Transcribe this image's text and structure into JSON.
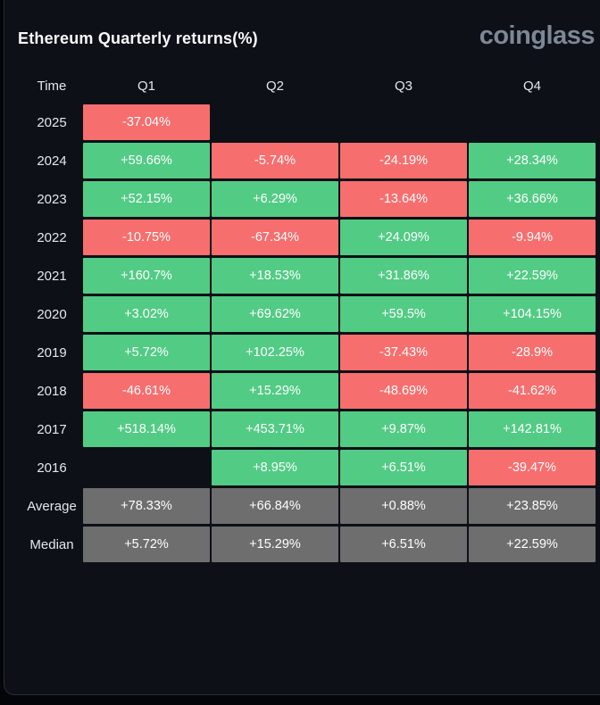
{
  "header": {
    "title": "Ethereum Quarterly returns(%)",
    "logo": "coinglass"
  },
  "colors": {
    "green": "#52cb85",
    "red": "#f76e6e",
    "gray": "#6e6e6e",
    "card_bg": "#0d1017",
    "page_bg": "#030508",
    "card_border": "#272c37",
    "text": "#ffffff",
    "label_text": "#e3e7ee",
    "logo_text": "#7e8796"
  },
  "table": {
    "columns": [
      "Time",
      "Q1",
      "Q2",
      "Q3",
      "Q4"
    ],
    "rows": [
      {
        "label": "2025",
        "cells": [
          {
            "text": "-37.04%",
            "color": "red"
          },
          null,
          null,
          null
        ]
      },
      {
        "label": "2024",
        "cells": [
          {
            "text": "+59.66%",
            "color": "green"
          },
          {
            "text": "-5.74%",
            "color": "red"
          },
          {
            "text": "-24.19%",
            "color": "red"
          },
          {
            "text": "+28.34%",
            "color": "green"
          }
        ]
      },
      {
        "label": "2023",
        "cells": [
          {
            "text": "+52.15%",
            "color": "green"
          },
          {
            "text": "+6.29%",
            "color": "green"
          },
          {
            "text": "-13.64%",
            "color": "red"
          },
          {
            "text": "+36.66%",
            "color": "green"
          }
        ]
      },
      {
        "label": "2022",
        "cells": [
          {
            "text": "-10.75%",
            "color": "red"
          },
          {
            "text": "-67.34%",
            "color": "red"
          },
          {
            "text": "+24.09%",
            "color": "green"
          },
          {
            "text": "-9.94%",
            "color": "red"
          }
        ]
      },
      {
        "label": "2021",
        "cells": [
          {
            "text": "+160.7%",
            "color": "green"
          },
          {
            "text": "+18.53%",
            "color": "green"
          },
          {
            "text": "+31.86%",
            "color": "green"
          },
          {
            "text": "+22.59%",
            "color": "green"
          }
        ]
      },
      {
        "label": "2020",
        "cells": [
          {
            "text": "+3.02%",
            "color": "green"
          },
          {
            "text": "+69.62%",
            "color": "green"
          },
          {
            "text": "+59.5%",
            "color": "green"
          },
          {
            "text": "+104.15%",
            "color": "green"
          }
        ]
      },
      {
        "label": "2019",
        "cells": [
          {
            "text": "+5.72%",
            "color": "green"
          },
          {
            "text": "+102.25%",
            "color": "green"
          },
          {
            "text": "-37.43%",
            "color": "red"
          },
          {
            "text": "-28.9%",
            "color": "red"
          }
        ]
      },
      {
        "label": "2018",
        "cells": [
          {
            "text": "-46.61%",
            "color": "red"
          },
          {
            "text": "+15.29%",
            "color": "green"
          },
          {
            "text": "-48.69%",
            "color": "red"
          },
          {
            "text": "-41.62%",
            "color": "red"
          }
        ]
      },
      {
        "label": "2017",
        "cells": [
          {
            "text": "+518.14%",
            "color": "green"
          },
          {
            "text": "+453.71%",
            "color": "green"
          },
          {
            "text": "+9.87%",
            "color": "green"
          },
          {
            "text": "+142.81%",
            "color": "green"
          }
        ]
      },
      {
        "label": "2016",
        "cells": [
          null,
          {
            "text": "+8.95%",
            "color": "green"
          },
          {
            "text": "+6.51%",
            "color": "green"
          },
          {
            "text": "-39.47%",
            "color": "red"
          }
        ]
      },
      {
        "label": "Average",
        "cells": [
          {
            "text": "+78.33%",
            "color": "gray"
          },
          {
            "text": "+66.84%",
            "color": "gray"
          },
          {
            "text": "+0.88%",
            "color": "gray"
          },
          {
            "text": "+23.85%",
            "color": "gray"
          }
        ]
      },
      {
        "label": "Median",
        "cells": [
          {
            "text": "+5.72%",
            "color": "gray"
          },
          {
            "text": "+15.29%",
            "color": "gray"
          },
          {
            "text": "+6.51%",
            "color": "gray"
          },
          {
            "text": "+22.59%",
            "color": "gray"
          }
        ]
      }
    ]
  },
  "chart_data": {
    "type": "heatmap",
    "title": "Ethereum Quarterly returns(%)",
    "columns": [
      "Q1",
      "Q2",
      "Q3",
      "Q4"
    ],
    "rows": [
      "2025",
      "2024",
      "2023",
      "2022",
      "2021",
      "2020",
      "2019",
      "2018",
      "2017",
      "2016",
      "Average",
      "Median"
    ],
    "values": [
      [
        -37.04,
        null,
        null,
        null
      ],
      [
        59.66,
        -5.74,
        -24.19,
        28.34
      ],
      [
        52.15,
        6.29,
        -13.64,
        36.66
      ],
      [
        -10.75,
        -67.34,
        24.09,
        -9.94
      ],
      [
        160.7,
        18.53,
        31.86,
        22.59
      ],
      [
        3.02,
        69.62,
        59.5,
        104.15
      ],
      [
        5.72,
        102.25,
        -37.43,
        -28.9
      ],
      [
        -46.61,
        15.29,
        -48.69,
        -41.62
      ],
      [
        518.14,
        453.71,
        9.87,
        142.81
      ],
      [
        null,
        8.95,
        6.51,
        -39.47
      ],
      [
        78.33,
        66.84,
        0.88,
        23.85
      ],
      [
        5.72,
        15.29,
        6.51,
        22.59
      ]
    ],
    "unit": "%",
    "color_rule": "positive=green, negative=red, Average/Median rows=gray, empty=no cell"
  }
}
